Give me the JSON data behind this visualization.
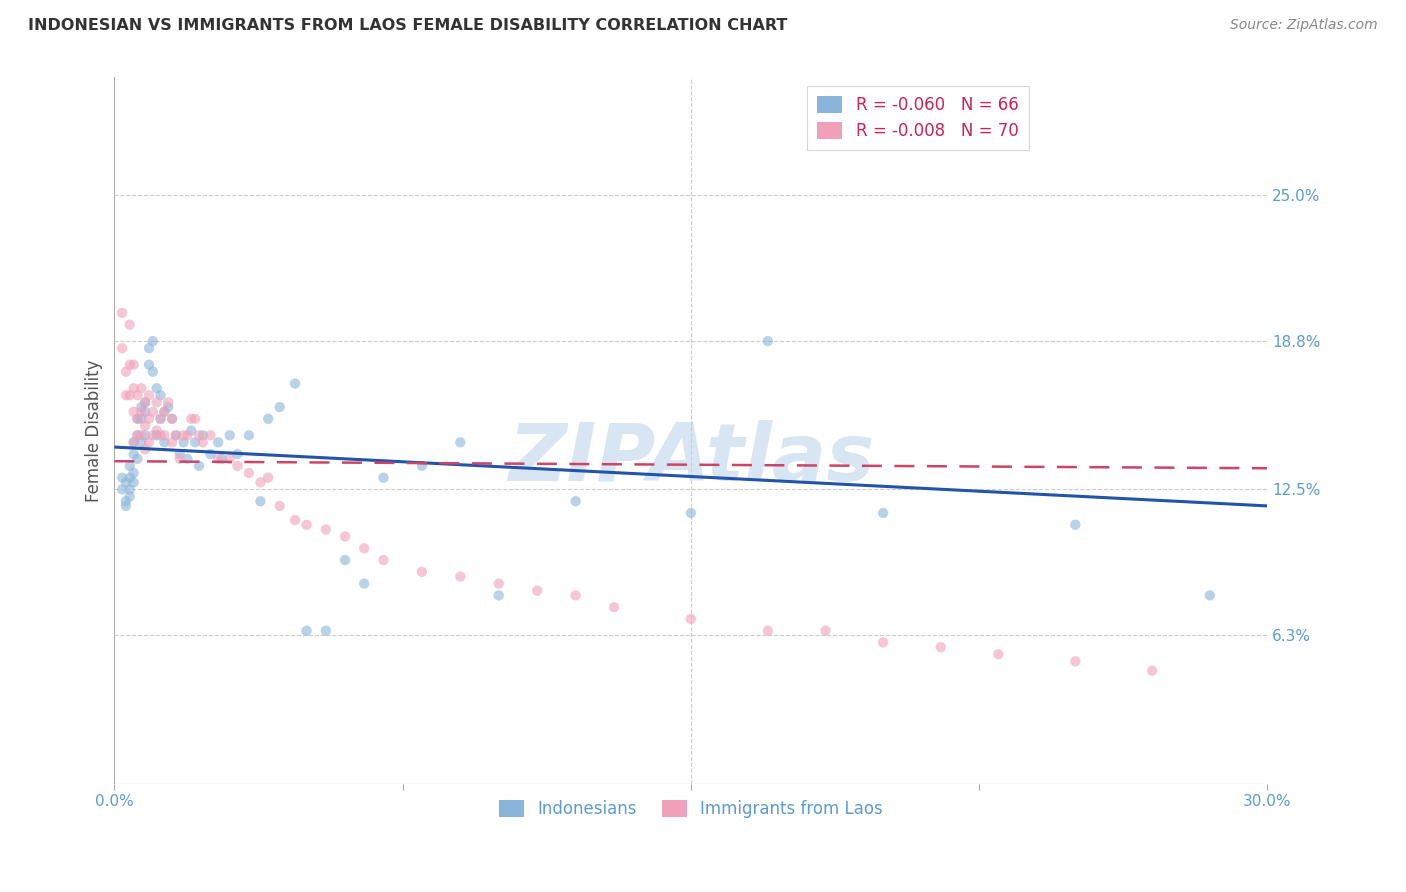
{
  "title": "INDONESIAN VS IMMIGRANTS FROM LAOS FEMALE DISABILITY CORRELATION CHART",
  "source": "Source: ZipAtlas.com",
  "ylabel": "Female Disability",
  "xlim": [
    0.0,
    0.3
  ],
  "ylim": [
    0.0,
    0.3
  ],
  "ytick_labels": [
    "6.3%",
    "12.5%",
    "18.8%",
    "25.0%"
  ],
  "ytick_values": [
    0.063,
    0.125,
    0.188,
    0.25
  ],
  "xtick_labels": [
    "0.0%",
    "",
    "",
    "",
    "30.0%"
  ],
  "xtick_values": [
    0.0,
    0.075,
    0.15,
    0.225,
    0.3
  ],
  "indonesian_x": [
    0.002,
    0.002,
    0.003,
    0.003,
    0.003,
    0.004,
    0.004,
    0.004,
    0.004,
    0.005,
    0.005,
    0.005,
    0.005,
    0.006,
    0.006,
    0.006,
    0.007,
    0.007,
    0.007,
    0.008,
    0.008,
    0.008,
    0.009,
    0.009,
    0.01,
    0.01,
    0.011,
    0.011,
    0.012,
    0.012,
    0.013,
    0.013,
    0.014,
    0.015,
    0.016,
    0.017,
    0.018,
    0.019,
    0.02,
    0.021,
    0.022,
    0.023,
    0.025,
    0.027,
    0.028,
    0.03,
    0.032,
    0.035,
    0.038,
    0.04,
    0.043,
    0.047,
    0.05,
    0.055,
    0.06,
    0.065,
    0.07,
    0.08,
    0.09,
    0.1,
    0.12,
    0.15,
    0.17,
    0.2,
    0.25,
    0.285
  ],
  "indonesian_y": [
    0.125,
    0.13,
    0.12,
    0.118,
    0.128,
    0.122,
    0.13,
    0.125,
    0.135,
    0.128,
    0.14,
    0.132,
    0.145,
    0.148,
    0.155,
    0.138,
    0.16,
    0.155,
    0.145,
    0.162,
    0.158,
    0.148,
    0.178,
    0.185,
    0.188,
    0.175,
    0.168,
    0.148,
    0.155,
    0.165,
    0.158,
    0.145,
    0.16,
    0.155,
    0.148,
    0.14,
    0.145,
    0.138,
    0.15,
    0.145,
    0.135,
    0.148,
    0.14,
    0.145,
    0.138,
    0.148,
    0.14,
    0.148,
    0.12,
    0.155,
    0.16,
    0.17,
    0.065,
    0.065,
    0.095,
    0.085,
    0.13,
    0.135,
    0.145,
    0.08,
    0.12,
    0.115,
    0.188,
    0.115,
    0.11,
    0.08
  ],
  "laos_x": [
    0.002,
    0.002,
    0.003,
    0.003,
    0.004,
    0.004,
    0.004,
    0.005,
    0.005,
    0.005,
    0.005,
    0.006,
    0.006,
    0.006,
    0.007,
    0.007,
    0.007,
    0.008,
    0.008,
    0.008,
    0.009,
    0.009,
    0.009,
    0.01,
    0.01,
    0.011,
    0.011,
    0.012,
    0.012,
    0.013,
    0.013,
    0.014,
    0.015,
    0.015,
    0.016,
    0.017,
    0.018,
    0.019,
    0.02,
    0.021,
    0.022,
    0.023,
    0.025,
    0.027,
    0.03,
    0.032,
    0.035,
    0.038,
    0.04,
    0.043,
    0.047,
    0.05,
    0.055,
    0.06,
    0.065,
    0.07,
    0.08,
    0.09,
    0.1,
    0.11,
    0.12,
    0.13,
    0.15,
    0.17,
    0.185,
    0.2,
    0.215,
    0.23,
    0.25,
    0.27
  ],
  "laos_y": [
    0.2,
    0.185,
    0.175,
    0.165,
    0.195,
    0.178,
    0.165,
    0.168,
    0.158,
    0.145,
    0.178,
    0.165,
    0.155,
    0.148,
    0.168,
    0.158,
    0.148,
    0.162,
    0.152,
    0.142,
    0.165,
    0.155,
    0.145,
    0.158,
    0.148,
    0.162,
    0.15,
    0.155,
    0.148,
    0.158,
    0.148,
    0.162,
    0.155,
    0.145,
    0.148,
    0.138,
    0.148,
    0.148,
    0.155,
    0.155,
    0.148,
    0.145,
    0.148,
    0.138,
    0.138,
    0.135,
    0.132,
    0.128,
    0.13,
    0.118,
    0.112,
    0.11,
    0.108,
    0.105,
    0.1,
    0.095,
    0.09,
    0.088,
    0.085,
    0.082,
    0.08,
    0.075,
    0.07,
    0.065,
    0.065,
    0.06,
    0.058,
    0.055,
    0.052,
    0.048
  ],
  "blue_line_x": [
    0.0,
    0.3
  ],
  "blue_line_y": [
    0.143,
    0.118
  ],
  "pink_line_x": [
    0.0,
    0.3
  ],
  "pink_line_y": [
    0.137,
    0.134
  ],
  "scatter_alpha": 0.6,
  "scatter_size": 55,
  "blue_color": "#8ab4d9",
  "pink_color": "#f0a0b8",
  "blue_line_color": "#2255aa",
  "pink_line_color": "#cc4466",
  "axis_color": "#5b9bd5",
  "grid_color": "#cccccc",
  "title_color": "#333333",
  "source_color": "#888888",
  "watermark_color": "#b8d0e8",
  "watermark_text": "ZIPAtlas"
}
